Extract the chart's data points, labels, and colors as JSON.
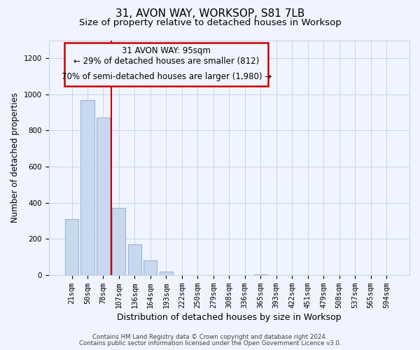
{
  "title": "31, AVON WAY, WORKSOP, S81 7LB",
  "subtitle": "Size of property relative to detached houses in Worksop",
  "xlabel": "Distribution of detached houses by size in Worksop",
  "ylabel": "Number of detached properties",
  "bar_labels": [
    "21sqm",
    "50sqm",
    "78sqm",
    "107sqm",
    "136sqm",
    "164sqm",
    "193sqm",
    "222sqm",
    "250sqm",
    "279sqm",
    "308sqm",
    "336sqm",
    "365sqm",
    "393sqm",
    "422sqm",
    "451sqm",
    "479sqm",
    "508sqm",
    "537sqm",
    "565sqm",
    "594sqm"
  ],
  "bar_values": [
    310,
    970,
    870,
    370,
    170,
    80,
    20,
    0,
    0,
    0,
    0,
    0,
    5,
    0,
    0,
    0,
    0,
    0,
    0,
    0,
    0
  ],
  "bar_color": "#c8d8ee",
  "bar_edge_color": "#9ab4d4",
  "vline_x": 2.5,
  "vline_color": "#cc0000",
  "ann_line1": "31 AVON WAY: 95sqm",
  "ann_line2": "← 29% of detached houses are smaller (812)",
  "ann_line3": "70% of semi-detached houses are larger (1,980) →",
  "ylim": [
    0,
    1300
  ],
  "yticks": [
    0,
    200,
    400,
    600,
    800,
    1000,
    1200
  ],
  "footer_line1": "Contains HM Land Registry data © Crown copyright and database right 2024.",
  "footer_line2": "Contains public sector information licensed under the Open Government Licence v3.0.",
  "bg_color": "#f0f4ff",
  "grid_color": "#c8d4e8",
  "title_fontsize": 11,
  "subtitle_fontsize": 9.5,
  "xlabel_fontsize": 9,
  "ylabel_fontsize": 8.5,
  "tick_fontsize": 7.5,
  "ann_fontsize": 8.5,
  "footer_fontsize": 6.2
}
